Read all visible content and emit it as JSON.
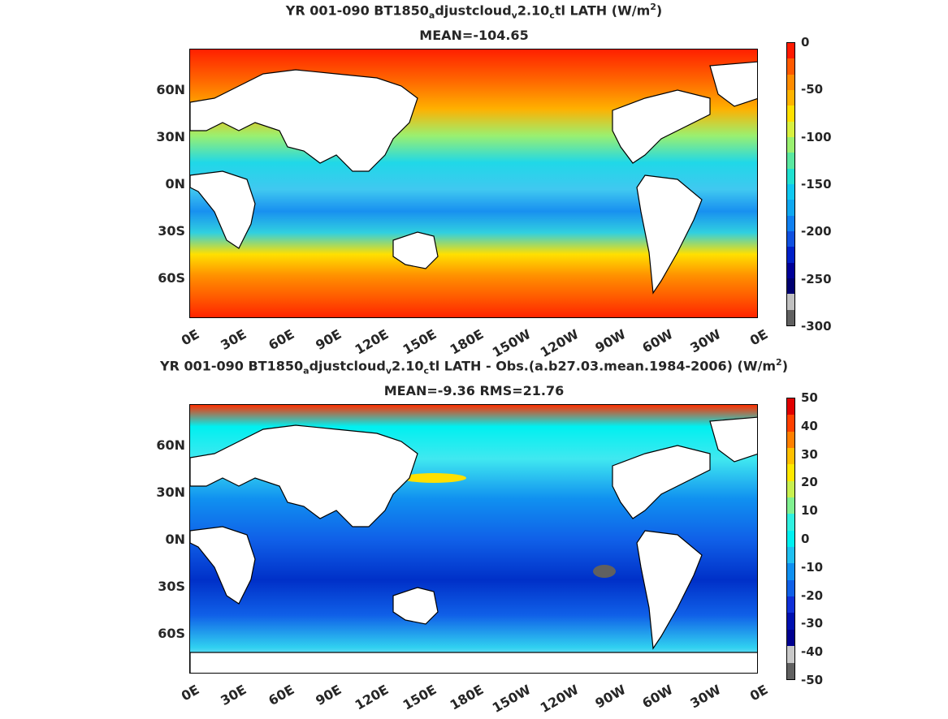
{
  "panel1": {
    "title_pre": "YR 001-090 BT1850",
    "title_sub1": "a",
    "title_mid1": "djustcloud",
    "title_sub2": "v",
    "title_mid2": "2.10",
    "title_sub3": "c",
    "title_post": "tl  LATH (W/m",
    "title_sup": "2",
    "title_end": ")",
    "stats": "MEAN=-104.65",
    "colorbar_labels": [
      "0",
      "-50",
      "-100",
      "-150",
      "-200",
      "-250",
      "-300"
    ],
    "colorbar_colors": [
      "#ff1a00",
      "#ff5a00",
      "#ff8c00",
      "#ffb400",
      "#ffe000",
      "#d8f040",
      "#9af070",
      "#5ae8a0",
      "#20e0d0",
      "#10c8f0",
      "#10a8f0",
      "#1080f0",
      "#1050e0",
      "#0020c8",
      "#000098",
      "#000070",
      "#c0c0c0",
      "#606060"
    ]
  },
  "panel2": {
    "title_pre": "YR 001-090 BT1850",
    "title_sub1": "a",
    "title_mid1": "djustcloud",
    "title_sub2": "v",
    "title_mid2": "2.10",
    "title_sub3": "c",
    "title_post": "tl LATH - Obs.(a.b27.03.mean.1984-2006) (W/m",
    "title_sup": "2",
    "title_end": ")",
    "stats": "MEAN=-9.36 RMS=21.76",
    "colorbar_labels": [
      "50",
      "40",
      "30",
      "20",
      "10",
      "0",
      "-10",
      "-20",
      "-30",
      "-40",
      "-50"
    ],
    "colorbar_colors": [
      "#e00000",
      "#ff4000",
      "#ff8000",
      "#ffc000",
      "#ffe800",
      "#c8f050",
      "#80f090",
      "#30f0e0",
      "#00f0f0",
      "#20c0f0",
      "#1090f0",
      "#1060e8",
      "#1030d8",
      "#0010b0",
      "#000090",
      "#c8c8c8",
      "#606060"
    ]
  },
  "axes": {
    "y_ticks": [
      "60N",
      "30N",
      "0N",
      "30S",
      "60S"
    ],
    "x_ticks": [
      "0E",
      "30E",
      "60E",
      "90E",
      "120E",
      "150E",
      "180E",
      "150W",
      "120W",
      "90W",
      "60W",
      "30W",
      "0E"
    ]
  }
}
